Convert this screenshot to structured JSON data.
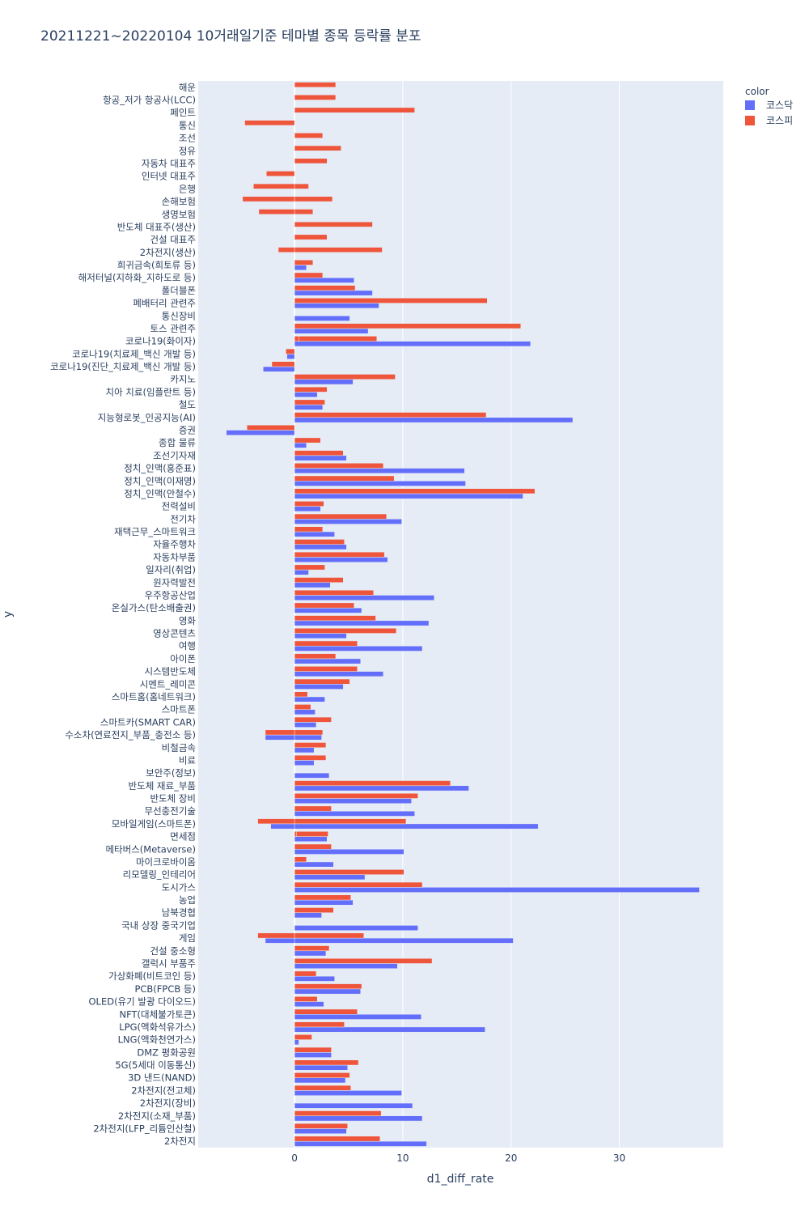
{
  "chart_data": {
    "type": "bar",
    "orientation": "horizontal",
    "barmode": "stack",
    "title": "20211221~20220104 10거래일기준 테마별 종목 등락률 분포",
    "xlabel": "d1_diff_rate",
    "ylabel": "y",
    "xlim": [
      -8.9,
      39.6
    ],
    "xticks": [
      0,
      10,
      20,
      30
    ],
    "grid": true,
    "legend_title": "color",
    "legend_position": "top-right",
    "series": [
      {
        "name": "코스닥",
        "color": "#636efa"
      },
      {
        "name": "코스피",
        "color": "#ef553b"
      }
    ],
    "categories": [
      "해운",
      "항공_저가 항공사(LCC)",
      "페인트",
      "통신",
      "조선",
      "정유",
      "자동차 대표주",
      "인터넷 대표주",
      "은행",
      "손해보험",
      "생명보험",
      "반도체 대표주(생산)",
      "건설 대표주",
      "2차전지(생산)",
      "희귀금속(희토류 등)",
      "해저터널(지하화_지하도로 등)",
      "폴더블폰",
      "폐배터리 관련주",
      "통신장비",
      "토스 관련주",
      "코로나19(화이자)",
      "코로나19(치료제_백신 개발 등)",
      "코로나19(진단_치료제_백신 개발 등)",
      "카지노",
      "치아 치료(임플란트 등)",
      "철도",
      "지능형로봇_인공지능(AI)",
      "증권",
      "종합 물류",
      "조선기자재",
      "정치_인맥(홍준표)",
      "정치_인맥(이재명)",
      "정치_인맥(안철수)",
      "전력설비",
      "전기차",
      "재택근무_스마트워크",
      "자율주행차",
      "자동차부품",
      "일자리(취업)",
      "원자력발전",
      "우주항공산업",
      "온실가스(탄소배출권)",
      "영화",
      "영상콘텐츠",
      "여행",
      "아이폰",
      "시스템반도체",
      "시멘트_레미콘",
      "스마트홈(홈네트워크)",
      "스마트폰",
      "스마트카(SMART CAR)",
      "수소차(연료전지_부품_충전소 등)",
      "비철금속",
      "비료",
      "보안주(정보)",
      "반도체 재료_부품",
      "반도체 장비",
      "무선충전기술",
      "모바일게임(스마트폰)",
      "면세점",
      "메타버스(Metaverse)",
      "마이크로바이옴",
      "리모델링_인테리어",
      "도시가스",
      "농업",
      "남북경협",
      "국내 상장 중국기업",
      "게임",
      "건설 중소형",
      "갤럭시 부품주",
      "가상화폐(비트코인 등)",
      "PCB(FPCB 등)",
      "OLED(유기 발광 다이오드)",
      "NFT(대체불가토큰)",
      "LPG(액화석유가스)",
      "LNG(액화천연가스)",
      "DMZ 평화공원",
      "5G(5세대 이동통신)",
      "3D 낸드(NAND)",
      "2차전지(전고체)",
      "2차전지(장비)",
      "2차전지(소재_부품)",
      "2차전지(LFP_리튬인산철)",
      "2차전지"
    ],
    "values": {
      "코스닥": [
        null,
        null,
        null,
        null,
        null,
        null,
        null,
        null,
        null,
        null,
        null,
        null,
        null,
        null,
        [
          1.1
        ],
        [
          5.5
        ],
        [
          7.2
        ],
        [
          7.8
        ],
        [
          5.1
        ],
        [
          6.8
        ],
        [
          21.8
        ],
        [
          -0.7
        ],
        [
          -2.9
        ],
        [
          5.4
        ],
        [
          2.1
        ],
        [
          2.6
        ],
        [
          25.7
        ],
        [
          -6.3
        ],
        [
          1.1
        ],
        [
          4.8
        ],
        [
          15.7
        ],
        [
          15.8
        ],
        [
          21.1
        ],
        [
          2.4
        ],
        [
          9.9
        ],
        [
          3.7
        ],
        [
          4.8
        ],
        [
          8.6
        ],
        [
          1.3
        ],
        [
          3.3
        ],
        [
          12.9
        ],
        [
          6.2
        ],
        [
          12.4
        ],
        [
          4.8
        ],
        [
          11.8
        ],
        [
          6.1
        ],
        [
          8.2
        ],
        [
          4.5
        ],
        [
          2.8
        ],
        [
          1.9
        ],
        [
          2.0
        ],
        [
          -2.7,
          2.5
        ],
        [
          1.8
        ],
        [
          1.8
        ],
        [
          3.2
        ],
        [
          16.1
        ],
        [
          10.8
        ],
        [
          11.1
        ],
        [
          -2.2,
          22.5
        ],
        [
          3.0
        ],
        [
          10.1
        ],
        [
          3.6
        ],
        [
          6.5
        ],
        [
          37.4
        ],
        [
          5.4
        ],
        [
          2.5
        ],
        [
          11.4
        ],
        [
          -2.7,
          20.2
        ],
        [
          2.9
        ],
        [
          9.5
        ],
        [
          3.7
        ],
        [
          6.1
        ],
        [
          2.7
        ],
        [
          11.7
        ],
        [
          17.6
        ],
        [
          0.4
        ],
        [
          3.4
        ],
        [
          4.9
        ],
        [
          4.7
        ],
        [
          9.9
        ],
        [
          10.9
        ],
        [
          11.8
        ],
        [
          4.8
        ],
        [
          12.2
        ]
      ],
      "코스피": [
        [
          3.8
        ],
        [
          3.8
        ],
        [
          11.1
        ],
        [
          -4.6
        ],
        [
          2.6
        ],
        [
          4.3
        ],
        [
          3.0
        ],
        [
          -2.6
        ],
        [
          -3.8,
          1.3
        ],
        [
          -4.8,
          3.5
        ],
        [
          -3.3,
          1.7
        ],
        [
          7.2
        ],
        [
          3.0
        ],
        [
          -1.5,
          8.1
        ],
        [
          1.7
        ],
        [
          2.6
        ],
        [
          5.6
        ],
        [
          17.8
        ],
        null,
        [
          20.9
        ],
        [
          0.4,
          7.2
        ],
        [
          -0.8
        ],
        [
          -2.1
        ],
        [
          9.3
        ],
        [
          3.0
        ],
        [
          2.8
        ],
        [
          17.7
        ],
        [
          -4.4
        ],
        [
          2.4
        ],
        [
          4.5
        ],
        [
          8.2
        ],
        [
          9.2
        ],
        [
          22.2
        ],
        [
          2.7
        ],
        [
          8.5
        ],
        [
          2.6
        ],
        [
          4.6
        ],
        [
          8.3
        ],
        [
          2.8
        ],
        [
          4.5
        ],
        [
          7.3
        ],
        [
          5.5
        ],
        [
          7.5
        ],
        [
          9.4
        ],
        [
          5.8
        ],
        [
          3.8
        ],
        [
          5.8
        ],
        [
          5.1
        ],
        [
          1.2
        ],
        [
          1.5
        ],
        [
          3.4
        ],
        [
          -2.7,
          2.6
        ],
        [
          2.9
        ],
        [
          2.9
        ],
        null,
        [
          14.4
        ],
        [
          11.4
        ],
        [
          3.4
        ],
        [
          -3.4,
          10.3
        ],
        [
          0.2,
          2.9
        ],
        [
          3.4
        ],
        [
          1.1
        ],
        [
          10.1
        ],
        [
          11.8
        ],
        [
          5.2
        ],
        [
          3.6
        ],
        null,
        [
          -3.4,
          6.4
        ],
        [
          3.2
        ],
        [
          12.7
        ],
        [
          2.0
        ],
        [
          6.2
        ],
        [
          2.1
        ],
        [
          5.8
        ],
        [
          4.6
        ],
        [
          1.6
        ],
        [
          3.4
        ],
        [
          5.9
        ],
        [
          5.1
        ],
        [
          5.2
        ],
        null,
        [
          8.0
        ],
        [
          4.9
        ],
        [
          7.9
        ]
      ]
    }
  }
}
